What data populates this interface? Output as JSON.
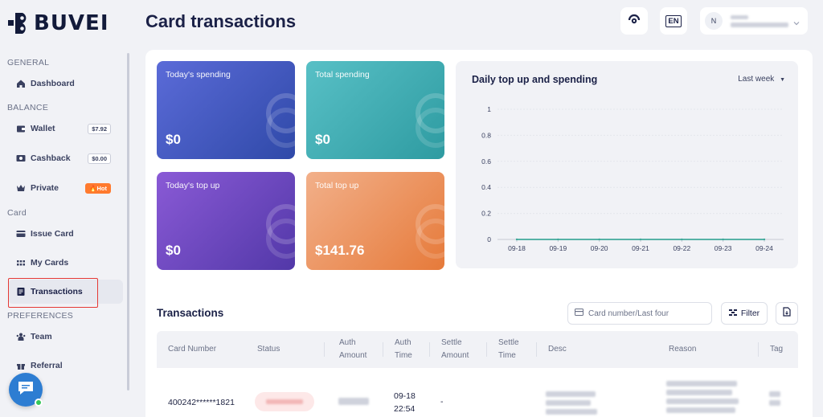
{
  "brand": {
    "name": "BUVEI"
  },
  "sidebar": {
    "sections": [
      {
        "title": "GENERAL"
      },
      {
        "title": "BALANCE"
      },
      {
        "title": "Card"
      },
      {
        "title": "PREFERENCES"
      }
    ],
    "items": [
      {
        "label": "Dashboard",
        "icon": "home-icon"
      },
      {
        "label": "Wallet",
        "icon": "wallet-icon",
        "badge": "$7.92"
      },
      {
        "label": "Cashback",
        "icon": "cashback-icon",
        "badge": "$0.00"
      },
      {
        "label": "Private",
        "icon": "crown-icon",
        "badge": "Hot"
      },
      {
        "label": "Issue Card",
        "icon": "card-icon"
      },
      {
        "label": "My Cards",
        "icon": "grid-icon"
      },
      {
        "label": "Transactions",
        "icon": "list-icon"
      },
      {
        "label": "Team",
        "icon": "team-icon"
      },
      {
        "label": "Referral",
        "icon": "gift-icon"
      }
    ]
  },
  "header": {
    "title": "Card transactions",
    "lang": "EN",
    "avatar_initial": "N"
  },
  "stats": [
    {
      "label": "Today's spending",
      "value": "$0"
    },
    {
      "label": "Total spending",
      "value": "$0"
    },
    {
      "label": "Today's top up",
      "value": "$0"
    },
    {
      "label": "Total top up",
      "value": "$141.76"
    }
  ],
  "chart_panel": {
    "title": "Daily top up and spending",
    "range": "Last week"
  },
  "chart_data": {
    "type": "line",
    "title": "Daily top up and spending",
    "x": [
      "09-18",
      "09-19",
      "09-20",
      "09-21",
      "09-22",
      "09-23",
      "09-24"
    ],
    "y_ticks": [
      "1",
      "0.8",
      "0.6",
      "0.4",
      "0.2",
      "0"
    ],
    "ylim": [
      0,
      1
    ],
    "series": [
      {
        "values": [
          0,
          0,
          0,
          0,
          0,
          0,
          0
        ],
        "color": "#3fa89a"
      }
    ],
    "grid": true
  },
  "transactions": {
    "title": "Transactions",
    "search_placeholder": "Card number/Last four",
    "filter_label": "Filter",
    "columns": [
      "Card Number",
      "Status",
      "Auth Amount",
      "Auth Time",
      "Settle Amount",
      "Settle Time",
      "Desc",
      "Reason",
      "Tag"
    ],
    "rows": [
      {
        "card_number": "400242******1821",
        "auth_time_date": "09-18",
        "auth_time_clock": "22:54",
        "settle_amount": "-"
      }
    ]
  }
}
